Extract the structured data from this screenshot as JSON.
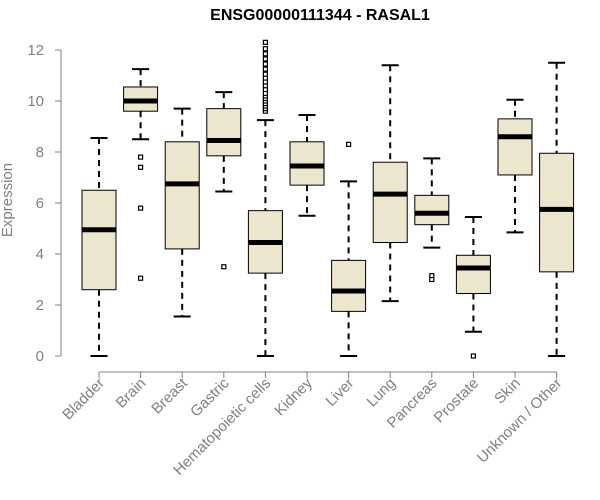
{
  "chart_data": {
    "type": "box",
    "title": "ENSG00000111344 - RASAL1",
    "xlabel": "",
    "ylabel": "Expression",
    "ylim": [
      0,
      12
    ],
    "yticks": [
      0,
      2,
      4,
      6,
      8,
      10,
      12
    ],
    "grid": false,
    "colors": {
      "box_fill": "#ede6cf",
      "stroke": "#000000",
      "axis": "#808080"
    },
    "categories": [
      "Bladder",
      "Brain",
      "Breast",
      "Gastric",
      "Hematopoietic cells",
      "Kidney",
      "Liver",
      "Lung",
      "Pancreas",
      "Prostate",
      "Skin",
      "Unknown / Other"
    ],
    "boxes": [
      {
        "name": "Bladder",
        "whisker_low": 0.0,
        "q1": 2.6,
        "median": 4.95,
        "q3": 6.5,
        "whisker_high": 8.55,
        "outliers": []
      },
      {
        "name": "Brain",
        "whisker_low": 8.5,
        "q1": 9.6,
        "median": 10.0,
        "q3": 10.55,
        "whisker_high": 11.25,
        "outliers": [
          7.8,
          7.4,
          5.8,
          3.05
        ]
      },
      {
        "name": "Breast",
        "whisker_low": 1.55,
        "q1": 4.2,
        "median": 6.75,
        "q3": 8.4,
        "whisker_high": 9.7,
        "outliers": []
      },
      {
        "name": "Gastric",
        "whisker_low": 6.45,
        "q1": 7.85,
        "median": 8.45,
        "q3": 9.7,
        "whisker_high": 10.35,
        "outliers": [
          3.5
        ]
      },
      {
        "name": "Hematopoietic cells",
        "whisker_low": 0.0,
        "q1": 3.25,
        "median": 4.45,
        "q3": 5.7,
        "whisker_high": 9.25,
        "outliers": [
          9.6,
          9.7,
          9.8,
          9.9,
          10.0,
          10.1,
          10.2,
          10.3,
          10.45,
          10.6,
          10.75,
          10.9,
          11.05,
          11.25,
          11.45,
          11.65,
          11.85,
          12.05,
          12.3
        ]
      },
      {
        "name": "Kidney",
        "whisker_low": 5.5,
        "q1": 6.7,
        "median": 7.45,
        "q3": 8.4,
        "whisker_high": 9.45,
        "outliers": []
      },
      {
        "name": "Liver",
        "whisker_low": 0.0,
        "q1": 1.75,
        "median": 2.55,
        "q3": 3.75,
        "whisker_high": 6.85,
        "outliers": [
          8.3
        ]
      },
      {
        "name": "Lung",
        "whisker_low": 2.15,
        "q1": 4.45,
        "median": 6.35,
        "q3": 7.6,
        "whisker_high": 11.4,
        "outliers": []
      },
      {
        "name": "Pancreas",
        "whisker_low": 4.25,
        "q1": 5.15,
        "median": 5.6,
        "q3": 6.3,
        "whisker_high": 7.75,
        "outliers": [
          3.15,
          3.0
        ]
      },
      {
        "name": "Prostate",
        "whisker_low": 0.95,
        "q1": 2.45,
        "median": 3.45,
        "q3": 3.95,
        "whisker_high": 5.45,
        "outliers": [
          0.0
        ]
      },
      {
        "name": "Skin",
        "whisker_low": 4.85,
        "q1": 7.1,
        "median": 8.6,
        "q3": 9.3,
        "whisker_high": 10.05,
        "outliers": []
      },
      {
        "name": "Unknown / Other",
        "whisker_low": 0.0,
        "q1": 3.3,
        "median": 5.75,
        "q3": 7.95,
        "whisker_high": 11.5,
        "outliers": []
      }
    ]
  }
}
